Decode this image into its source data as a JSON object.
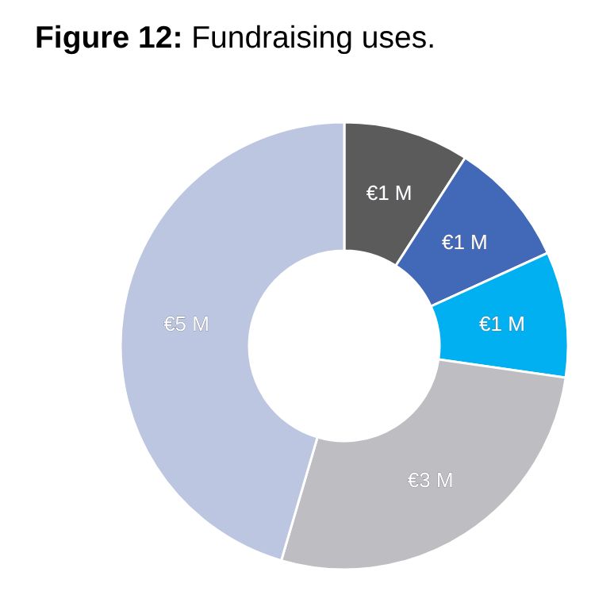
{
  "chart_data": {
    "type": "donut",
    "title": "Figure 12: Fundraising uses.",
    "categories": [
      null,
      null,
      null,
      null,
      null
    ],
    "values": [
      1,
      1,
      1,
      3,
      5
    ],
    "value_labels": [
      "€1 M",
      "€1 M",
      "€1 M",
      "€3 M",
      "€5 M"
    ],
    "colors": [
      "#5b5b5b",
      "#4169b8",
      "#00b0f0",
      "#bdbdc2",
      "#bcc6e0"
    ]
  }
}
